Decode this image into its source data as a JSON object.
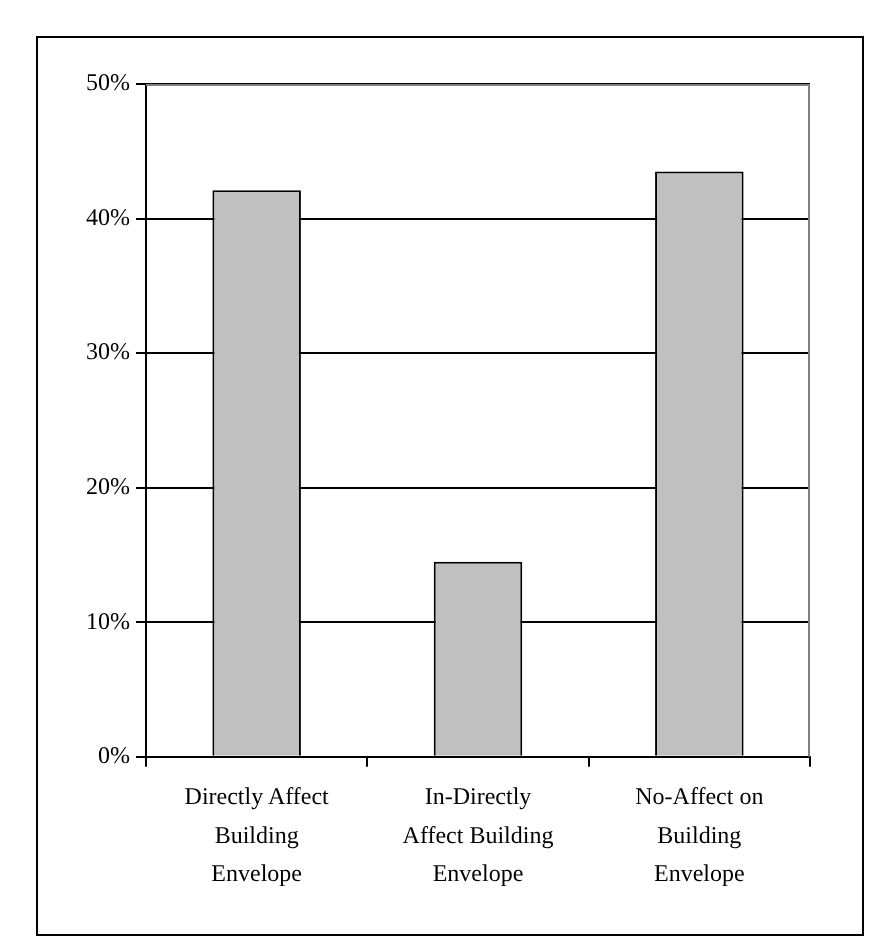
{
  "chart_data": {
    "type": "bar",
    "categories": [
      "Directly Affect Building Envelope",
      "In-Directly Affect Building Envelope",
      "No-Affect on Building Envelope"
    ],
    "values": [
      42.1,
      14.5,
      43.5
    ],
    "color": "#c0c0c0",
    "ylim": [
      0,
      50
    ],
    "yticks": [
      {
        "value": 0,
        "label": "0%"
      },
      {
        "value": 10,
        "label": "10%"
      },
      {
        "value": 20,
        "label": "20%"
      },
      {
        "value": 30,
        "label": "30%"
      },
      {
        "value": 40,
        "label": "40%"
      },
      {
        "value": 50,
        "label": "50%"
      }
    ],
    "grid": "y",
    "legend": false
  }
}
